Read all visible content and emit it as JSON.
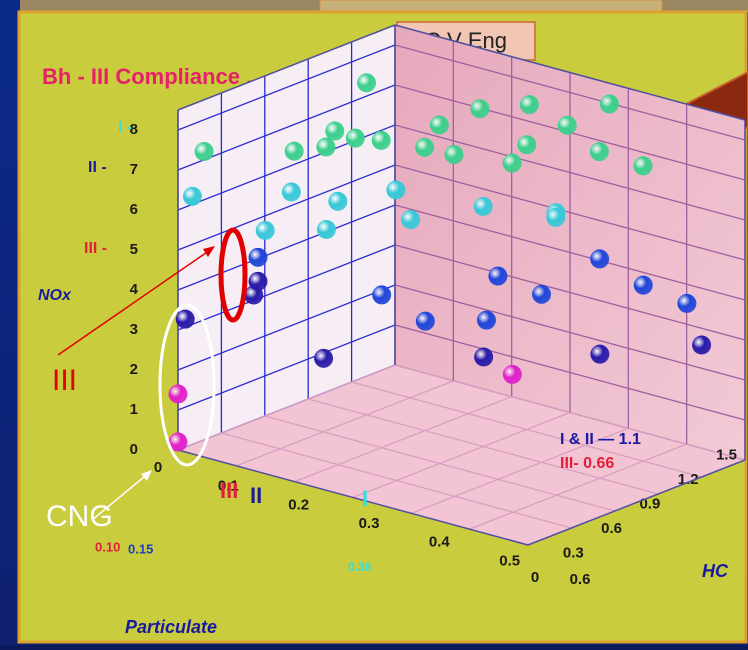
{
  "chart_data": {
    "type": "scatter3d",
    "header_label": "C V Eng",
    "title": "Bh - III Compliance . . .",
    "xlabel": "Particulate",
    "ylabel": "HC",
    "zlabel": "NOx",
    "xlim": [
      0,
      0.6
    ],
    "ylim": [
      0,
      1.5
    ],
    "zlim": [
      0,
      8.5
    ],
    "xticks": [
      0,
      0.1,
      0.2,
      0.3,
      0.4,
      0.5,
      0.6
    ],
    "yticks": [
      0,
      0.3,
      0.6,
      0.9,
      1.2,
      1.5
    ],
    "zticks": [
      0,
      1,
      2,
      3,
      4,
      5,
      6,
      7,
      8
    ],
    "grid": true,
    "series": [
      {
        "color": "#3ccf8c",
        "x": [
          0.02,
          0.1,
          0.1,
          0.12,
          0.15,
          0.18,
          0.2,
          0.22,
          0.25,
          0.28,
          0.3,
          0.32,
          0.35,
          0.4,
          0.38,
          0.45,
          0.08,
          0.15
        ],
        "y": [
          0.1,
          0.9,
          0.4,
          0.6,
          0.8,
          0.5,
          1.0,
          1.2,
          0.9,
          1.3,
          1.1,
          1.4,
          1.0,
          1.3,
          1.45,
          1.4,
          0.7,
          1.1
        ],
        "z": [
          7.4,
          8.3,
          7.3,
          7.6,
          7.2,
          7.8,
          7.5,
          7.7,
          7.1,
          7.9,
          6.8,
          7.4,
          7.6,
          7.2,
          8.1,
          6.9,
          6.9,
          6.6
        ]
      },
      {
        "color": "#38c8d8",
        "x": [
          0.0,
          0.12,
          0.15,
          0.2,
          0.18,
          0.25,
          0.3,
          0.1,
          0.4,
          0.35
        ],
        "y": [
          0.1,
          0.3,
          0.5,
          0.7,
          0.3,
          0.6,
          0.9,
          0.2,
          1.0,
          1.2
        ],
        "z": [
          6.2,
          6.5,
          6.1,
          6.3,
          5.8,
          5.9,
          6.0,
          5.6,
          6.1,
          5.5
        ]
      },
      {
        "color": "#2046d8",
        "x": [
          0.1,
          0.25,
          0.35,
          0.4,
          0.45,
          0.5,
          0.3,
          0.38,
          0.55
        ],
        "y": [
          0.15,
          0.4,
          0.8,
          0.9,
          1.1,
          1.2,
          0.5,
          0.6,
          1.3
        ],
        "z": [
          5.0,
          4.3,
          4.6,
          4.2,
          5.0,
          4.4,
          3.7,
          3.9,
          4.0
        ]
      },
      {
        "color": "#2a1aa8",
        "x": [
          0.0,
          0.1,
          0.1,
          0.2,
          0.4,
          0.5,
          0.6
        ],
        "y": [
          0.05,
          0.12,
          0.15,
          0.2,
          0.5,
          0.9,
          1.2
        ],
        "z": [
          3.2,
          4.1,
          4.4,
          2.8,
          3.2,
          3.1,
          3.3
        ]
      },
      {
        "color": "#e020c8",
        "x": [
          0,
          0,
          0.35
        ],
        "y": [
          0,
          0,
          0.9
        ],
        "z": [
          0.2,
          1.4,
          2.0
        ]
      }
    ],
    "annotations": [
      {
        "text": "I -",
        "color": "#30e0e0"
      },
      {
        "text": "II -",
        "color": "#1a1aa0"
      },
      {
        "text": "III -",
        "color": "#e0203a"
      },
      {
        "text": "III",
        "color": "#e0203a"
      },
      {
        "text": "II",
        "color": "#1a1aa0"
      },
      {
        "text": "I",
        "color": "#30e0e0"
      },
      {
        "text": "0.10",
        "color": "#e0203a"
      },
      {
        "text": "0.15",
        "color": "#1a40c0"
      },
      {
        "text": "0.36",
        "color": "#30e0e0"
      },
      {
        "text": "I & II — 1.1",
        "color": "#1a1aa0"
      },
      {
        "text": "III- 0.66",
        "color": "#e0203a"
      }
    ]
  },
  "callouts": {
    "red_label": "III",
    "white_label": "CNG"
  }
}
